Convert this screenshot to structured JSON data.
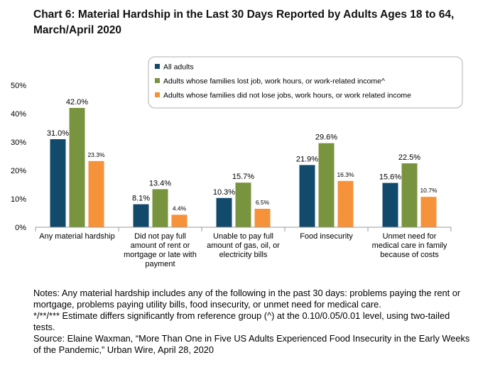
{
  "title": "Chart 6: Material Hardship in the Last 30 Days Reported by Adults Ages 18 to 64, March/April 2020",
  "notes": [
    "Notes: Any material hardship includes any of the following in the past 30 days: problems paying the rent or mortgage, problems paying utility bills, food insecurity, or unmet need for medical care.",
    "*/**/*** Estimate differs significantly from reference group (^) at the 0.10/0.05/0.01 level, using two-tailed tests.",
    "Source: Elaine Waxman, “More Than One in Five US Adults Experienced Food Insecurity in the Early Weeks of the Pandemic,” Urban Wire, April 28, 2020"
  ],
  "chart_data": {
    "type": "bar",
    "categories": [
      [
        "Any material hardship"
      ],
      [
        "Did not pay full",
        "amount of rent or",
        "mortgage or late with",
        "payment"
      ],
      [
        "Unable to pay full",
        "amount of gas, oil, or",
        "electricity bills"
      ],
      [
        "Food insecurity"
      ],
      [
        "Unmet need for",
        "medical care in family",
        "because of costs"
      ]
    ],
    "series": [
      {
        "name": "All adults",
        "color": "#124a6b",
        "values": [
          31.0,
          8.1,
          10.3,
          21.9,
          15.6
        ],
        "labels": [
          "31.0%",
          "8.1%",
          "10.3%",
          "21.9%",
          "15.6%"
        ]
      },
      {
        "name": "Adults whose families lost job, work hours, or work-related income^",
        "color": "#79943f",
        "values": [
          42.0,
          13.4,
          15.7,
          29.6,
          22.5
        ],
        "labels": [
          "42.0%",
          "13.4%",
          "15.7%",
          "29.6%",
          "22.5%"
        ]
      },
      {
        "name": "Adults whose families did not lose jobs, work hours, or work related income",
        "color": "#f5923a",
        "values": [
          23.3,
          4.4,
          6.5,
          16.3,
          10.7
        ],
        "labels": [
          "23.3%",
          "4.4%",
          "6.5%",
          "16.3%",
          "10.7%"
        ]
      }
    ],
    "ylim": [
      0,
      50
    ],
    "yticks": [
      "0%",
      "10%",
      "20%",
      "30%",
      "40%",
      "50%"
    ],
    "grid": false,
    "legend": "top-right"
  }
}
